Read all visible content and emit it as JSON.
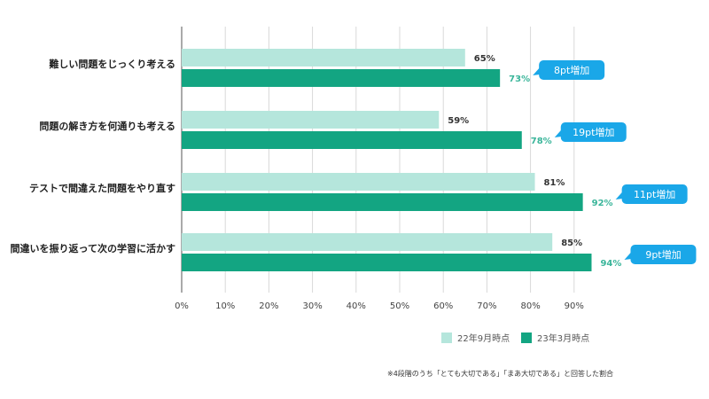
{
  "chart_data": {
    "type": "bar",
    "orientation": "horizontal",
    "categories": [
      "難しい問題をじっくり考える",
      "問題の解き方を何通りも考える",
      "テストで間違えた問題をやり直す",
      "間違いを振り返って次の学習に活かす"
    ],
    "series": [
      {
        "name": "22年9月時点",
        "color": "#b5e6dc",
        "values": [
          65,
          59,
          81,
          85
        ],
        "labels": [
          "65%",
          "59%",
          "81%",
          "85%"
        ]
      },
      {
        "name": "23年3月時点",
        "color": "#13a582",
        "values": [
          73,
          78,
          92,
          94
        ],
        "labels": [
          "73%",
          "78%",
          "92%",
          "94%"
        ]
      }
    ],
    "callouts": [
      "8pt増加",
      "19pt増加",
      "11pt増加",
      "9pt増加"
    ],
    "callout_color": "#1aa7e8",
    "xlim": [
      0,
      90
    ],
    "xticks": [
      0,
      10,
      20,
      30,
      40,
      50,
      60,
      70,
      80,
      90
    ],
    "xtick_labels": [
      "0%",
      "10%",
      "20%",
      "30%",
      "40%",
      "50%",
      "60%",
      "70%",
      "80%",
      "90%"
    ],
    "grid": true,
    "legend_position": "bottom-right",
    "footnote": "※4段階のうち「とても大切である」「まあ大切である」と回答した割合"
  }
}
